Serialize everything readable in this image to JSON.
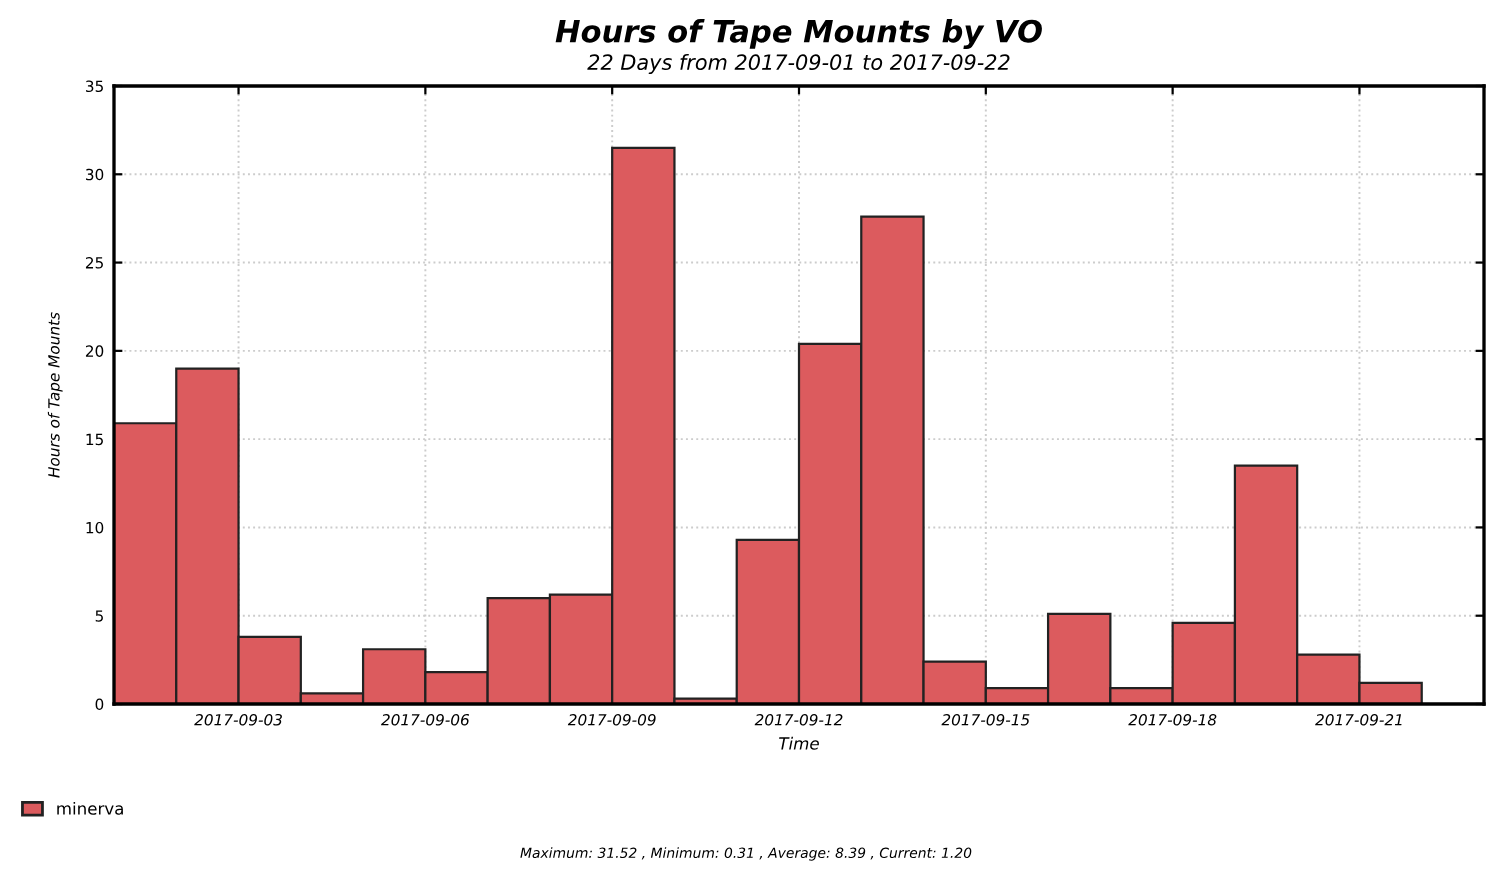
{
  "chart_data": {
    "type": "bar",
    "title": "Hours of Tape Mounts by VO",
    "subtitle": "22 Days from 2017-09-01 to 2017-09-22",
    "xlabel": "Time",
    "ylabel": "Hours of Tape Mounts",
    "x": [
      "2017-09-01T12:00",
      "2017-09-02T12:00",
      "2017-09-03T12:00",
      "2017-09-04T12:00",
      "2017-09-05T12:00",
      "2017-09-06T12:00",
      "2017-09-07T12:00",
      "2017-09-08T12:00",
      "2017-09-09T12:00",
      "2017-09-10T12:00",
      "2017-09-11T12:00",
      "2017-09-12T12:00",
      "2017-09-13T12:00",
      "2017-09-14T12:00",
      "2017-09-15T12:00",
      "2017-09-16T12:00",
      "2017-09-17T12:00",
      "2017-09-18T12:00",
      "2017-09-19T12:00",
      "2017-09-20T12:00",
      "2017-09-21T12:00"
    ],
    "series": [
      {
        "name": "minerva",
        "color": "#dc5b5e",
        "values": [
          15.9,
          19.0,
          3.8,
          0.6,
          3.1,
          1.8,
          6.0,
          6.2,
          31.5,
          0.3,
          9.3,
          20.4,
          27.6,
          2.4,
          0.9,
          5.1,
          0.9,
          4.6,
          13.5,
          2.8,
          1.2
        ]
      }
    ],
    "xlim": [
      "2017-09-01",
      "2017-09-23"
    ],
    "xticks": [
      "2017-09-03",
      "2017-09-06",
      "2017-09-09",
      "2017-09-12",
      "2017-09-15",
      "2017-09-18",
      "2017-09-21"
    ],
    "ylim": [
      0,
      35
    ],
    "yticks": [
      0,
      5,
      10,
      15,
      20,
      25,
      30,
      35
    ],
    "grid": true,
    "legend": "bottom left",
    "annotations": [
      "Maximum: 31.52 , Minimum: 0.31 , Average: 8.39 , Current: 1.20"
    ]
  }
}
